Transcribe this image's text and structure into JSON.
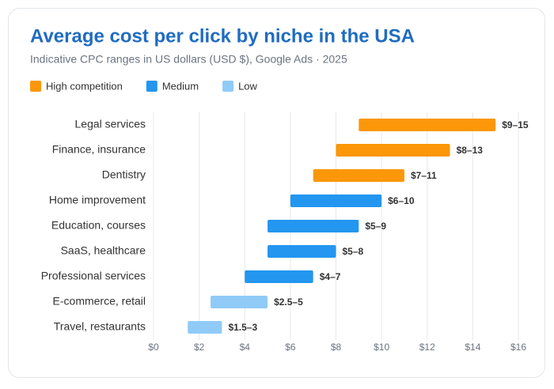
{
  "chart_data": {
    "type": "range-bar",
    "title": "Average cost per click by niche in the USA",
    "subtitle": "Indicative CPC ranges in US dollars (USD $), Google Ads · 2025",
    "categories": [
      "Legal services",
      "Finance, insurance",
      "Dentistry",
      "Home improvement",
      "Education, courses",
      "SaaS, healthcare",
      "Professional services",
      "E-commerce, retail",
      "Travel, restaurants"
    ],
    "series": [
      {
        "name": "High competition",
        "color": "#fb9708",
        "low": [
          9,
          8,
          7,
          null,
          null,
          null,
          null,
          null,
          null
        ],
        "high": [
          15,
          13,
          11,
          null,
          null,
          null,
          null,
          null,
          null
        ],
        "value_labels": [
          "$9–15",
          "$8–13",
          "$7–11",
          null,
          null,
          null,
          null,
          null,
          null
        ]
      },
      {
        "name": "Medium",
        "color": "#2396ef",
        "low": [
          null,
          null,
          null,
          6,
          5,
          5,
          4,
          null,
          null
        ],
        "high": [
          null,
          null,
          null,
          10,
          9,
          8,
          7,
          null,
          null
        ],
        "value_labels": [
          null,
          null,
          null,
          "$6–10",
          "$5–9",
          "$5–8",
          "$4–7",
          null,
          null
        ]
      },
      {
        "name": "Low",
        "color": "#90cbf8",
        "low": [
          null,
          null,
          null,
          null,
          null,
          null,
          null,
          2.5,
          1.5
        ],
        "high": [
          null,
          null,
          null,
          null,
          null,
          null,
          null,
          5,
          3
        ],
        "value_labels": [
          null,
          null,
          null,
          null,
          null,
          null,
          null,
          "$2.5–5",
          "$1.5–3"
        ]
      }
    ],
    "xlim": [
      0,
      16
    ],
    "xticks": [
      {
        "value": 0,
        "label": "$0"
      },
      {
        "value": 2,
        "label": "$2"
      },
      {
        "value": 4,
        "label": "$4"
      },
      {
        "value": 6,
        "label": "$6"
      },
      {
        "value": 8,
        "label": "$8"
      },
      {
        "value": 10,
        "label": "$10"
      },
      {
        "value": 12,
        "label": "$12"
      },
      {
        "value": 14,
        "label": "$14"
      },
      {
        "value": 16,
        "label": "$16"
      }
    ],
    "grid": true
  }
}
